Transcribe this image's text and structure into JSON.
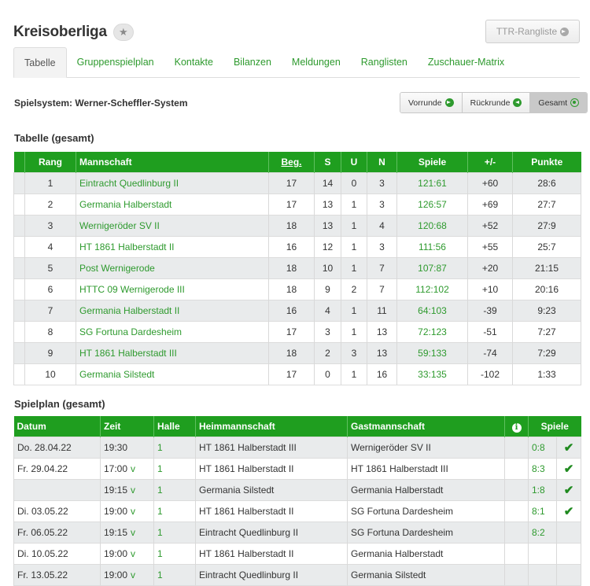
{
  "header": {
    "title": "Kreisoberliga",
    "star_icon": "star-icon",
    "ttr_label": "TTR-Rangliste"
  },
  "tabs": [
    {
      "label": "Tabelle",
      "active": true
    },
    {
      "label": "Gruppenspielplan"
    },
    {
      "label": "Kontakte"
    },
    {
      "label": "Bilanzen"
    },
    {
      "label": "Meldungen"
    },
    {
      "label": "Ranglisten"
    },
    {
      "label": "Zuschauer-Matrix"
    }
  ],
  "system_label": "Spielsystem: Werner-Scheffler-System",
  "segment": {
    "vorrunde": "Vorrunde",
    "rueckrunde": "Rückrunde",
    "gesamt": "Gesamt"
  },
  "table_section": {
    "title": "Tabelle (gesamt)",
    "headers": [
      "Rang",
      "Mannschaft",
      "Beg.",
      "S",
      "U",
      "N",
      "Spiele",
      "+/-",
      "Punkte"
    ],
    "rows": [
      {
        "rang": "1",
        "team": "Eintracht Quedlinburg II",
        "beg": "17",
        "s": "14",
        "u": "0",
        "n": "3",
        "spiele": "121:61",
        "diff": "+60",
        "punkte": "28:6"
      },
      {
        "rang": "2",
        "team": "Germania Halberstadt",
        "beg": "17",
        "s": "13",
        "u": "1",
        "n": "3",
        "spiele": "126:57",
        "diff": "+69",
        "punkte": "27:7"
      },
      {
        "rang": "3",
        "team": "Wernigeröder SV II",
        "beg": "18",
        "s": "13",
        "u": "1",
        "n": "4",
        "spiele": "120:68",
        "diff": "+52",
        "punkte": "27:9"
      },
      {
        "rang": "4",
        "team": "HT 1861 Halberstadt II",
        "beg": "16",
        "s": "12",
        "u": "1",
        "n": "3",
        "spiele": "111:56",
        "diff": "+55",
        "punkte": "25:7"
      },
      {
        "rang": "5",
        "team": "Post Wernigerode",
        "beg": "18",
        "s": "10",
        "u": "1",
        "n": "7",
        "spiele": "107:87",
        "diff": "+20",
        "punkte": "21:15"
      },
      {
        "rang": "6",
        "team": "HTTC 09 Wernigerode III",
        "beg": "18",
        "s": "9",
        "u": "2",
        "n": "7",
        "spiele": "112:102",
        "diff": "+10",
        "punkte": "20:16"
      },
      {
        "rang": "7",
        "team": "Germania Halberstadt II",
        "beg": "16",
        "s": "4",
        "u": "1",
        "n": "11",
        "spiele": "64:103",
        "diff": "-39",
        "punkte": "9:23"
      },
      {
        "rang": "8",
        "team": "SG Fortuna Dardesheim",
        "beg": "17",
        "s": "3",
        "u": "1",
        "n": "13",
        "spiele": "72:123",
        "diff": "-51",
        "punkte": "7:27"
      },
      {
        "rang": "9",
        "team": "HT 1861 Halberstadt III",
        "beg": "18",
        "s": "2",
        "u": "3",
        "n": "13",
        "spiele": "59:133",
        "diff": "-74",
        "punkte": "7:29"
      },
      {
        "rang": "10",
        "team": "Germania Silstedt",
        "beg": "17",
        "s": "0",
        "u": "1",
        "n": "16",
        "spiele": "33:135",
        "diff": "-102",
        "punkte": "1:33"
      }
    ]
  },
  "plan_section": {
    "title": "Spielplan (gesamt)",
    "headers": [
      "Datum",
      "Zeit",
      "Halle",
      "Heimmannschaft",
      "Gastmannschaft",
      "Spiele"
    ],
    "rows": [
      {
        "datum": "Do. 28.04.22",
        "zeit": "19:30",
        "v": "",
        "halle": "1",
        "heim": "HT 1861 Halberstadt III",
        "gast": "Wernigeröder SV II",
        "spiele": "0:8",
        "check": true
      },
      {
        "datum": "Fr. 29.04.22",
        "zeit": "17:00",
        "v": "v",
        "halle": "1",
        "heim": "HT 1861 Halberstadt II",
        "gast": "HT 1861 Halberstadt III",
        "spiele": "8:3",
        "check": true
      },
      {
        "datum": "",
        "zeit": "19:15",
        "v": "v",
        "halle": "1",
        "heim": "Germania Silstedt",
        "gast": "Germania Halberstadt",
        "spiele": "1:8",
        "check": true
      },
      {
        "datum": "Di. 03.05.22",
        "zeit": "19:00",
        "v": "v",
        "halle": "1",
        "heim": "HT 1861 Halberstadt II",
        "gast": "SG Fortuna Dardesheim",
        "spiele": "8:1",
        "check": true
      },
      {
        "datum": "Fr. 06.05.22",
        "zeit": "19:15",
        "v": "v",
        "halle": "1",
        "heim": "Eintracht Quedlinburg II",
        "gast": "SG Fortuna Dardesheim",
        "spiele": "8:2",
        "check": false
      },
      {
        "datum": "Di. 10.05.22",
        "zeit": "19:00",
        "v": "v",
        "halle": "1",
        "heim": "HT 1861 Halberstadt II",
        "gast": "Germania Halberstadt",
        "spiele": "",
        "check": false
      },
      {
        "datum": "Fr. 13.05.22",
        "zeit": "19:00",
        "v": "v",
        "halle": "1",
        "heim": "Eintracht Quedlinburg II",
        "gast": "Germania Silstedt",
        "spiele": "",
        "check": false
      }
    ]
  }
}
